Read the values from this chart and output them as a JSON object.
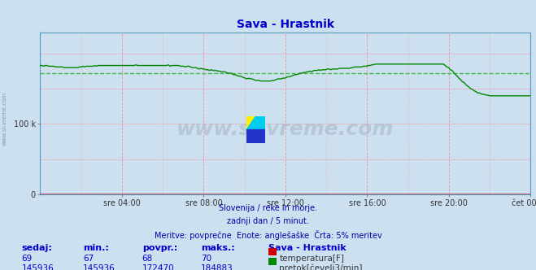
{
  "title": "Sava - Hrastnik",
  "bg_color": "#cce0f0",
  "plot_bg_color": "#cce0f0",
  "flow_color": "#008800",
  "temp_color": "#cc0000",
  "avg_color": "#44bb44",
  "flow_avg": 172470,
  "temp_avg": 68,
  "flow_min": 145936,
  "flow_max": 184883,
  "temp_min": 67,
  "temp_max": 70,
  "temp_current": 69,
  "flow_current": 145936,
  "ymax": 230000,
  "xlabel_times": [
    "sre 04:00",
    "sre 08:00",
    "sre 12:00",
    "sre 16:00",
    "sre 20:00",
    "čet 00:00"
  ],
  "footer_line1": "Slovenija / reke in morje.",
  "footer_line2": "zadnji dan / 5 minut.",
  "footer_line3": "Meritve: povprečne  Enote: anglešaške  Črta: 5% meritev",
  "watermark": "www.si-vreme.com",
  "table_headers": [
    "sedaj:",
    "min.:",
    "povpr.:",
    "maks.:",
    "Sava - Hrastnik"
  ],
  "table_row1": [
    "69",
    "67",
    "68",
    "70"
  ],
  "table_row2": [
    "145936",
    "145936",
    "172470",
    "184883"
  ],
  "label_temp": "temperatura[F]",
  "label_flow": "pretok[čevelj3/min]",
  "left_label": "www.si-vreme.com"
}
